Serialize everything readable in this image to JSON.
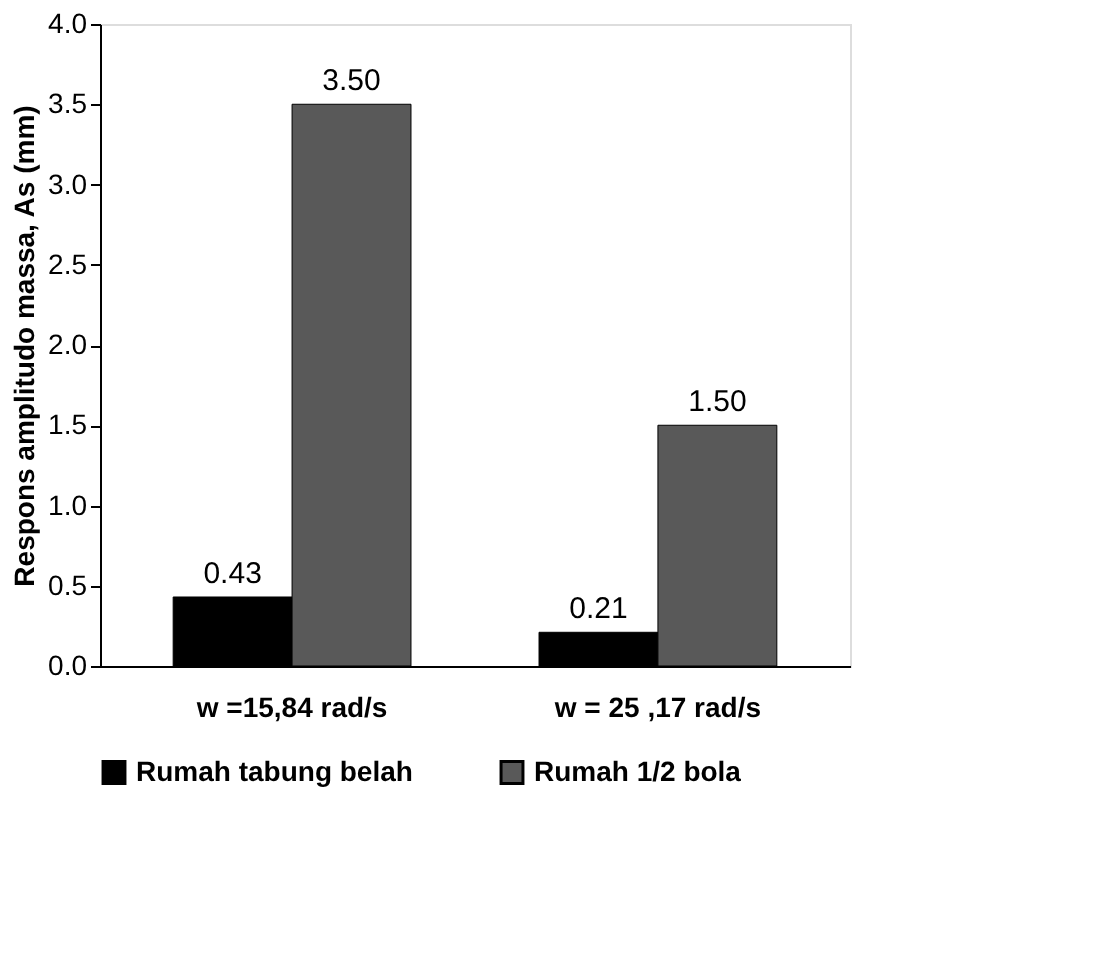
{
  "chart_data": {
    "type": "bar",
    "ylabel": "Respons amplitudo massa, As (mm)",
    "categories": [
      "w =15,84 rad/s",
      "w = 25 ,17 rad/s"
    ],
    "series": [
      {
        "name": "Rumah tabung belah",
        "color": "#000000",
        "values": [
          0.43,
          0.21
        ],
        "value_labels": [
          "0.43",
          "0.21"
        ]
      },
      {
        "name": "Rumah 1/2 bola",
        "color": "#595959",
        "values": [
          3.5,
          1.5
        ],
        "value_labels": [
          "3.50",
          "1.50"
        ]
      }
    ],
    "ylim": [
      0,
      4
    ],
    "yticks": [
      {
        "value": 0,
        "label": "0.0"
      },
      0.5,
      {
        "value": 1,
        "label": "1.0"
      },
      1.5,
      {
        "value": 2,
        "label": "2.0"
      },
      2.5,
      {
        "value": 3,
        "label": "3.0"
      },
      3.5,
      {
        "value": 4,
        "label": "4.0"
      }
    ],
    "grid": false,
    "legend": "bottom"
  }
}
